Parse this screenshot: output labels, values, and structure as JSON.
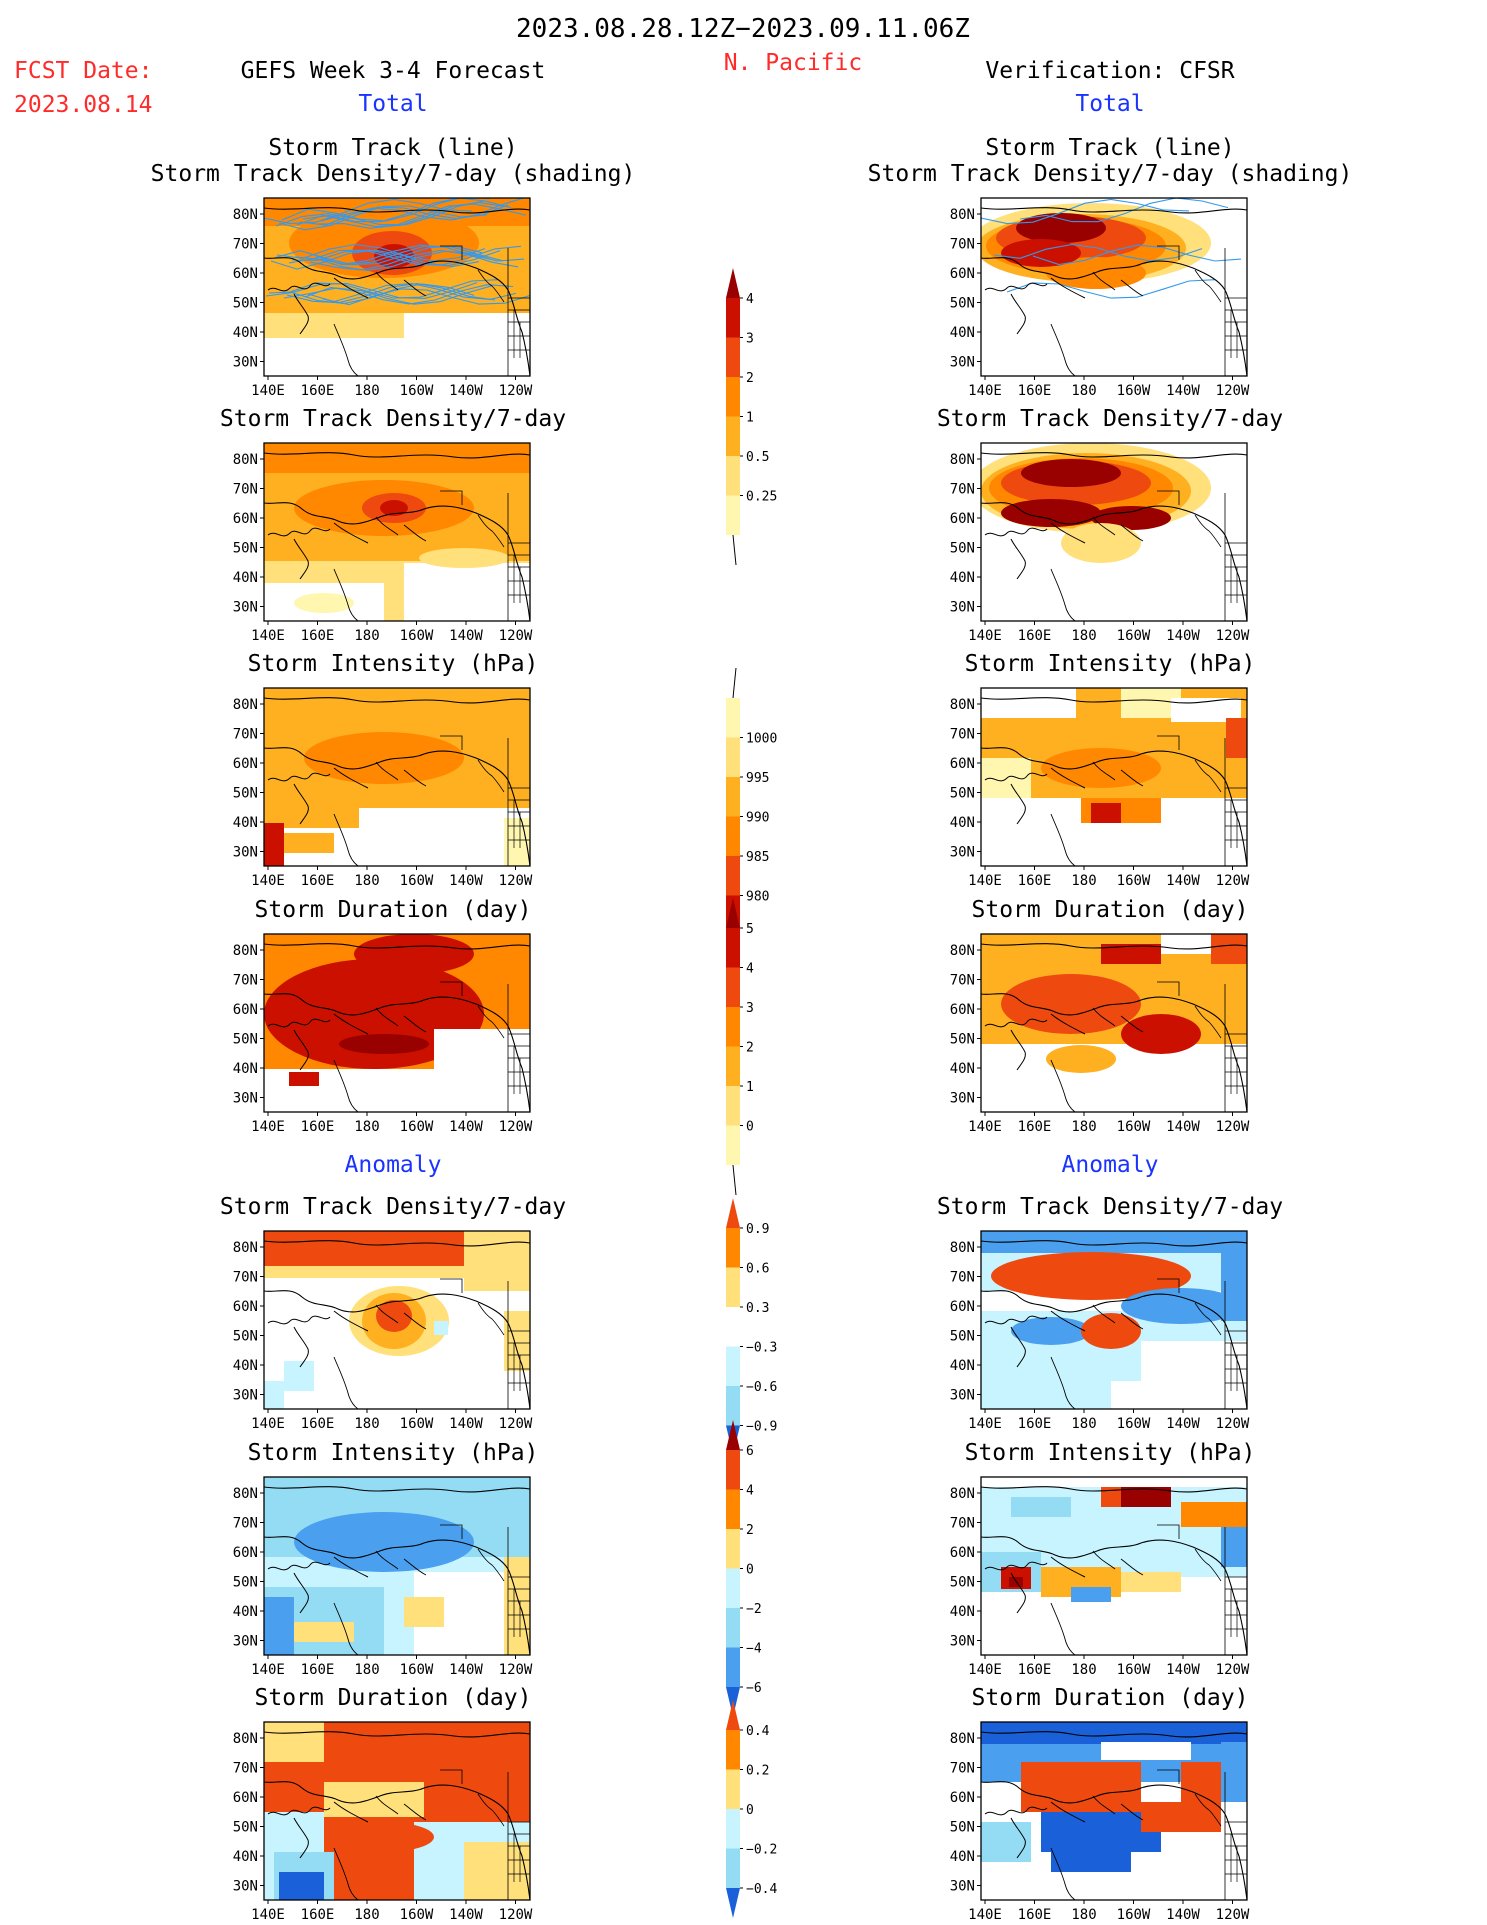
{
  "header": {
    "date_range": "2023.08.28.12Z−2023.09.11.06Z",
    "fcst_label": "FCST Date:",
    "fcst_date": "2023.08.14",
    "forecast_title": "GEFS Week 3-4 Forecast",
    "region": "N. Pacific",
    "verification_title": "Verification: CFSR",
    "total_left": "Total",
    "total_right": "Total",
    "anomaly_left": "Anomaly",
    "anomaly_right": "Anomaly"
  },
  "panel_titles": {
    "track_line": "Storm Track (line)",
    "track_shading": "Storm Track Density/7-day (shading)",
    "density": "Storm Track Density/7-day",
    "intensity": "Storm Intensity (hPa)",
    "duration": "Storm Duration (day)"
  },
  "axes": {
    "lat_labels": [
      "80N",
      "70N",
      "60N",
      "50N",
      "40N",
      "30N"
    ],
    "lon_labels": [
      "140E",
      "160E",
      "180",
      "160W",
      "140W",
      "120W"
    ]
  },
  "colorbars": {
    "density_total": [
      "4",
      "3",
      "2",
      "1",
      "0.5",
      "0.25"
    ],
    "intensity_total": [
      "1000",
      "995",
      "990",
      "985",
      "980"
    ],
    "duration_total": [
      "5",
      "4",
      "3",
      "2",
      "1",
      "0"
    ],
    "density_anom": [
      "0.9",
      "0.6",
      "0.3",
      "−0.3",
      "−0.6",
      "−0.9"
    ],
    "intensity_anom": [
      "6",
      "4",
      "2",
      "0",
      "−2",
      "−4",
      "−6"
    ],
    "duration_anom": [
      "0.4",
      "0.2",
      "0",
      "−0.2",
      "−0.4"
    ]
  },
  "colors": {
    "red_title": "#ff2a2a",
    "blue_title": "#1a33ff",
    "track_line": "#3399ee",
    "warm": [
      "#fff6b0",
      "#ffe07a",
      "#ffb020",
      "#ff8800",
      "#ee4a10",
      "#cc1000",
      "#990000"
    ],
    "cool": [
      "#c8f4ff",
      "#94dcf4",
      "#4aa0ee",
      "#1a60d8"
    ]
  }
}
